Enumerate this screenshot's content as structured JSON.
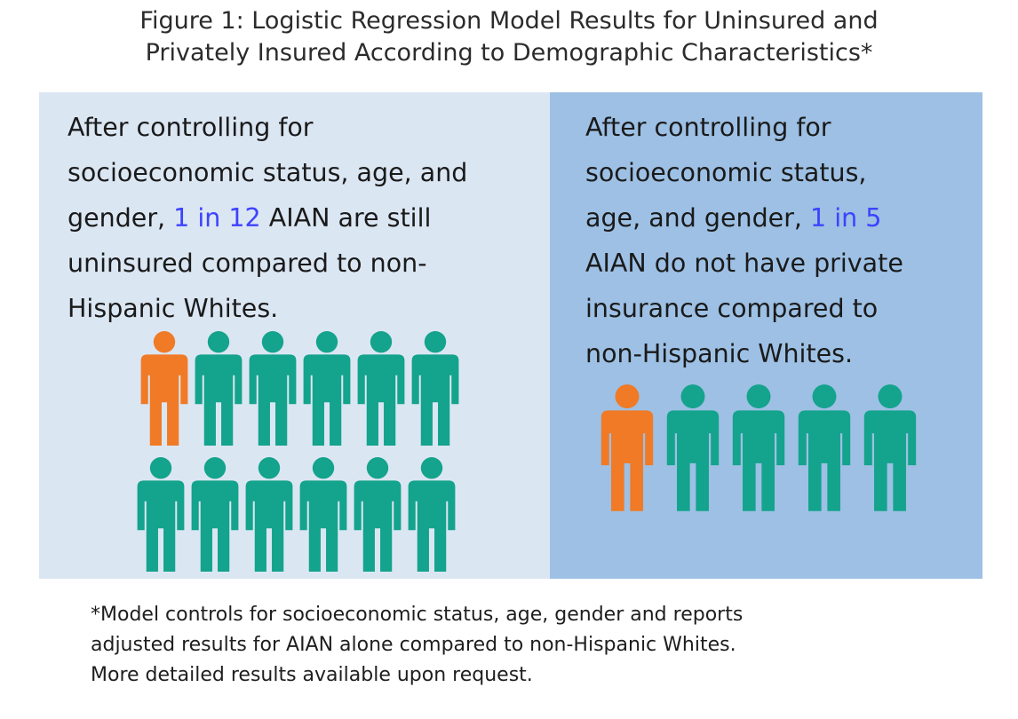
{
  "title": {
    "line1": "Figure 1: Logistic Regression Model Results for Uninsured and",
    "line2": "Privately Insured According to Demographic Characteristics*"
  },
  "left_panel": {
    "background": "#dbe6f3",
    "line1": "After controlling for",
    "line2": "socioeconomic status, age, and",
    "line3_pre": "gender, ",
    "line3_highlight": "1 in 12",
    "line3_post": " AIAN are still",
    "line4": "uninsured compared to non-",
    "line5": "Hispanic Whites.",
    "icon_counts": {
      "highlighted": 1,
      "total": 12
    },
    "highlight_color": "#f07a25",
    "base_color": "#14a38c"
  },
  "right_panel": {
    "background": "#9dc0e4",
    "line1": "After controlling for",
    "line2": "socioeconomic status,",
    "line3_pre": "age, and gender, ",
    "line3_highlight": "1 in 5",
    "line4": "AIAN do not have private",
    "line5": "insurance compared to",
    "line6": "non-Hispanic Whites.",
    "icon_counts": {
      "highlighted": 1,
      "total": 5
    },
    "highlight_color": "#f07a25",
    "base_color": "#14a38c"
  },
  "footnote": {
    "line1": "*Model controls for socioeconomic status, age, gender and reports",
    "line2": "adjusted results for AIAN alone compared to non-Hispanic Whites.",
    "line3": "More detailed results available upon request."
  }
}
